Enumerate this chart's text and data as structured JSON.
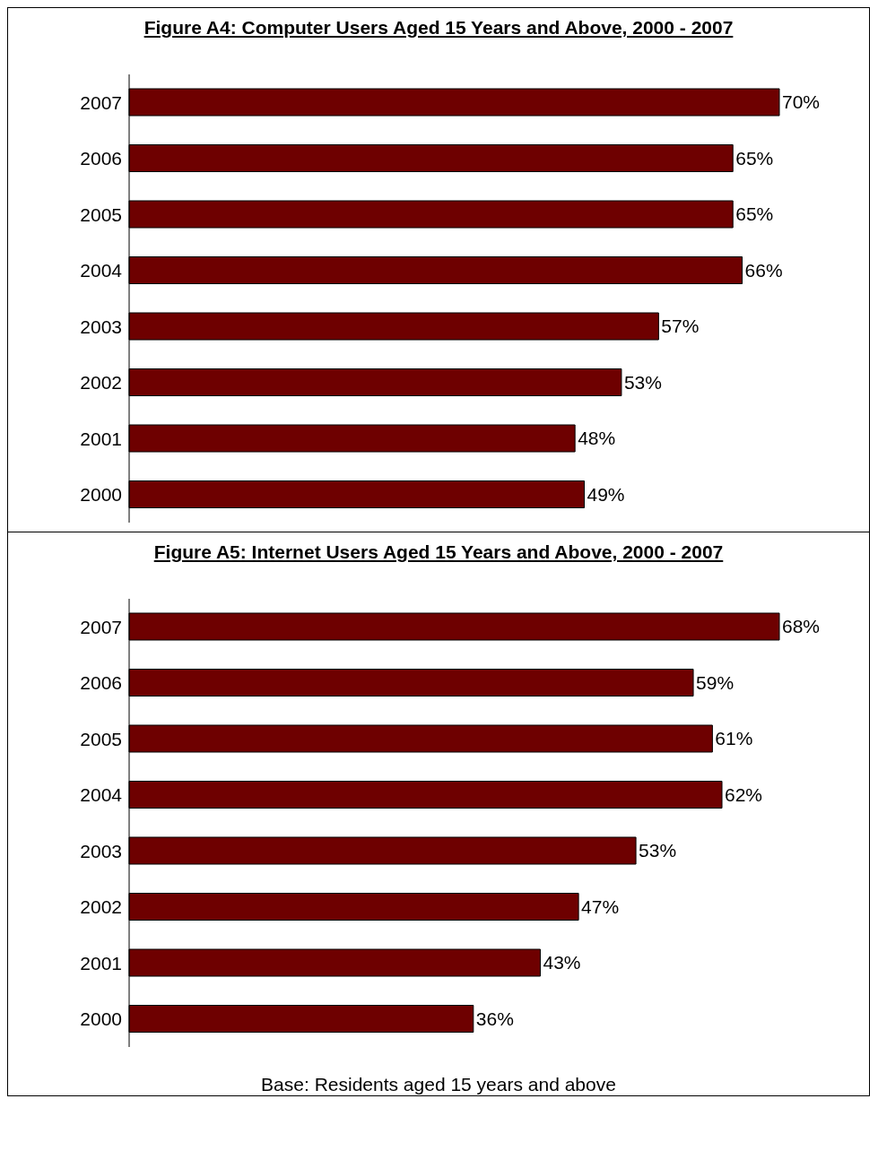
{
  "chart_data": [
    {
      "type": "bar",
      "orientation": "horizontal",
      "title": "Figure A4: Computer Users Aged 15 Years and Above, 2000 - 2007",
      "categories": [
        "2007",
        "2006",
        "2005",
        "2004",
        "2003",
        "2002",
        "2001",
        "2000"
      ],
      "values": [
        70,
        65,
        65,
        66,
        57,
        53,
        48,
        49
      ],
      "value_labels": [
        "70%",
        "65%",
        "65%",
        "66%",
        "57%",
        "53%",
        "48%",
        "49%"
      ],
      "color": "#6e0000"
    },
    {
      "type": "bar",
      "orientation": "horizontal",
      "title": "Figure A5: Internet Users Aged 15 Years and Above, 2000 - 2007",
      "categories": [
        "2007",
        "2006",
        "2005",
        "2004",
        "2003",
        "2002",
        "2001",
        "2000"
      ],
      "values": [
        68,
        59,
        61,
        62,
        53,
        47,
        43,
        36
      ],
      "value_labels": [
        "68%",
        "59%",
        "61%",
        "62%",
        "53%",
        "47%",
        "43%",
        "36%"
      ],
      "color": "#6e0000",
      "annotations": [
        "Base: Residents aged 15 years and above"
      ]
    }
  ]
}
